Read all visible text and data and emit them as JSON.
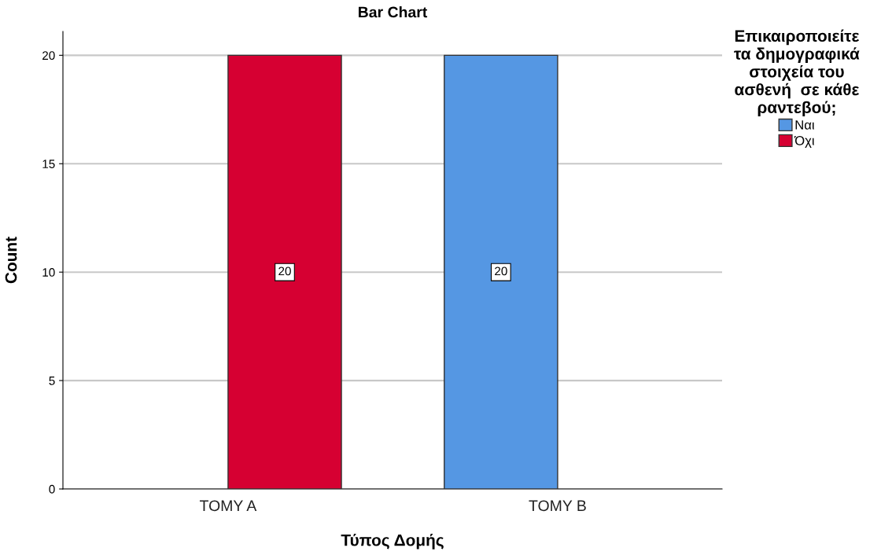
{
  "chart_data": {
    "type": "bar",
    "title": "Bar Chart",
    "xlabel": "Τύπος Δομής",
    "ylabel": "Count",
    "legend_title": "Επικαιροποιείτε\nτα δημογραφικά\nστοιχεία του\nασθενή  σε κάθε\nραντεβού;",
    "categories": [
      "TOMY A",
      "TOMY B"
    ],
    "series": [
      {
        "name": "Ναι",
        "color": "#5597e3",
        "values": [
          null,
          20
        ]
      },
      {
        "name": "Όχι",
        "color": "#d60032",
        "values": [
          20,
          null
        ]
      }
    ],
    "ylim": [
      0,
      21.1
    ],
    "yticks": [
      0,
      5,
      10,
      15,
      20
    ],
    "grid": "y",
    "legend": "right",
    "data_labels": true
  }
}
